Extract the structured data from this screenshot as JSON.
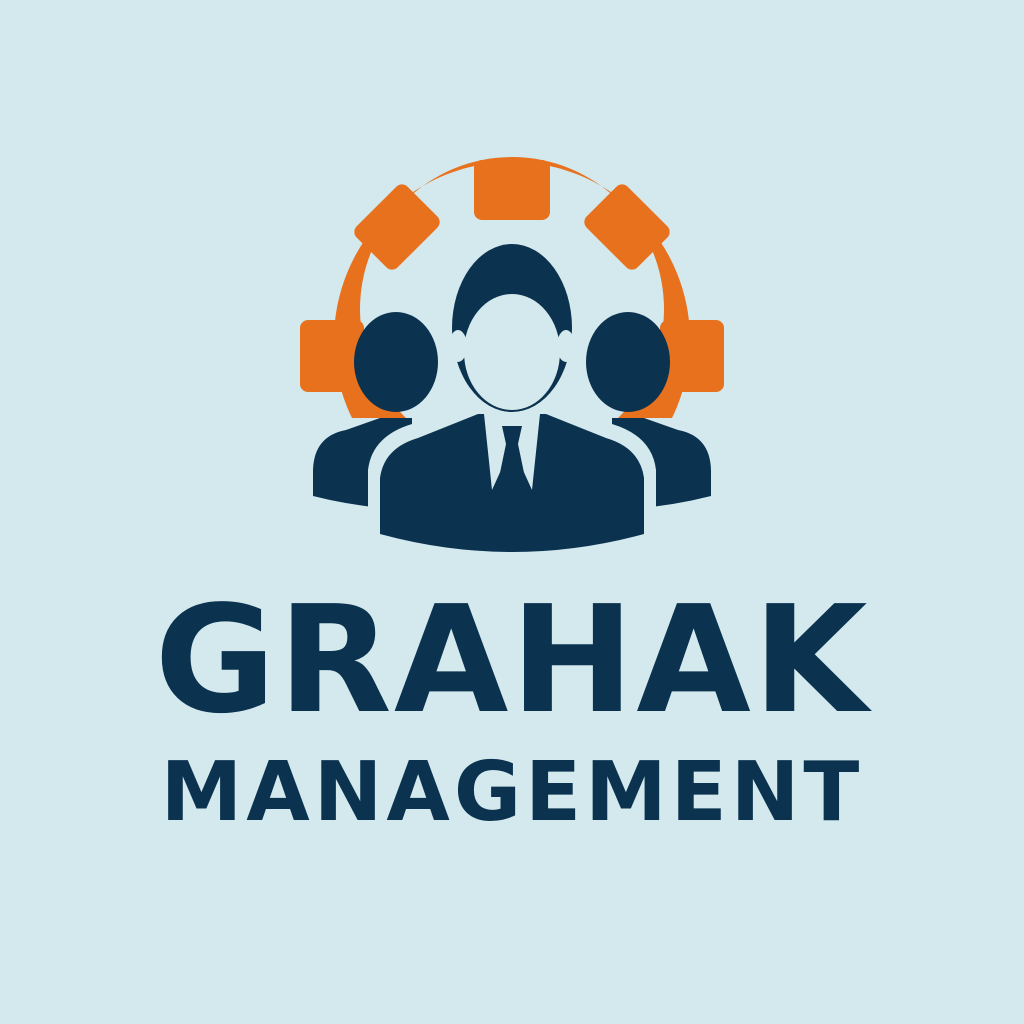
{
  "logo": {
    "name": "GRAHAK",
    "tagline": "MANAGEMENT",
    "emblem_icon": "gear-with-team-icon"
  },
  "colors": {
    "background": "#D3E9EE",
    "navy": "#0B324F",
    "orange": "#E8711E"
  }
}
